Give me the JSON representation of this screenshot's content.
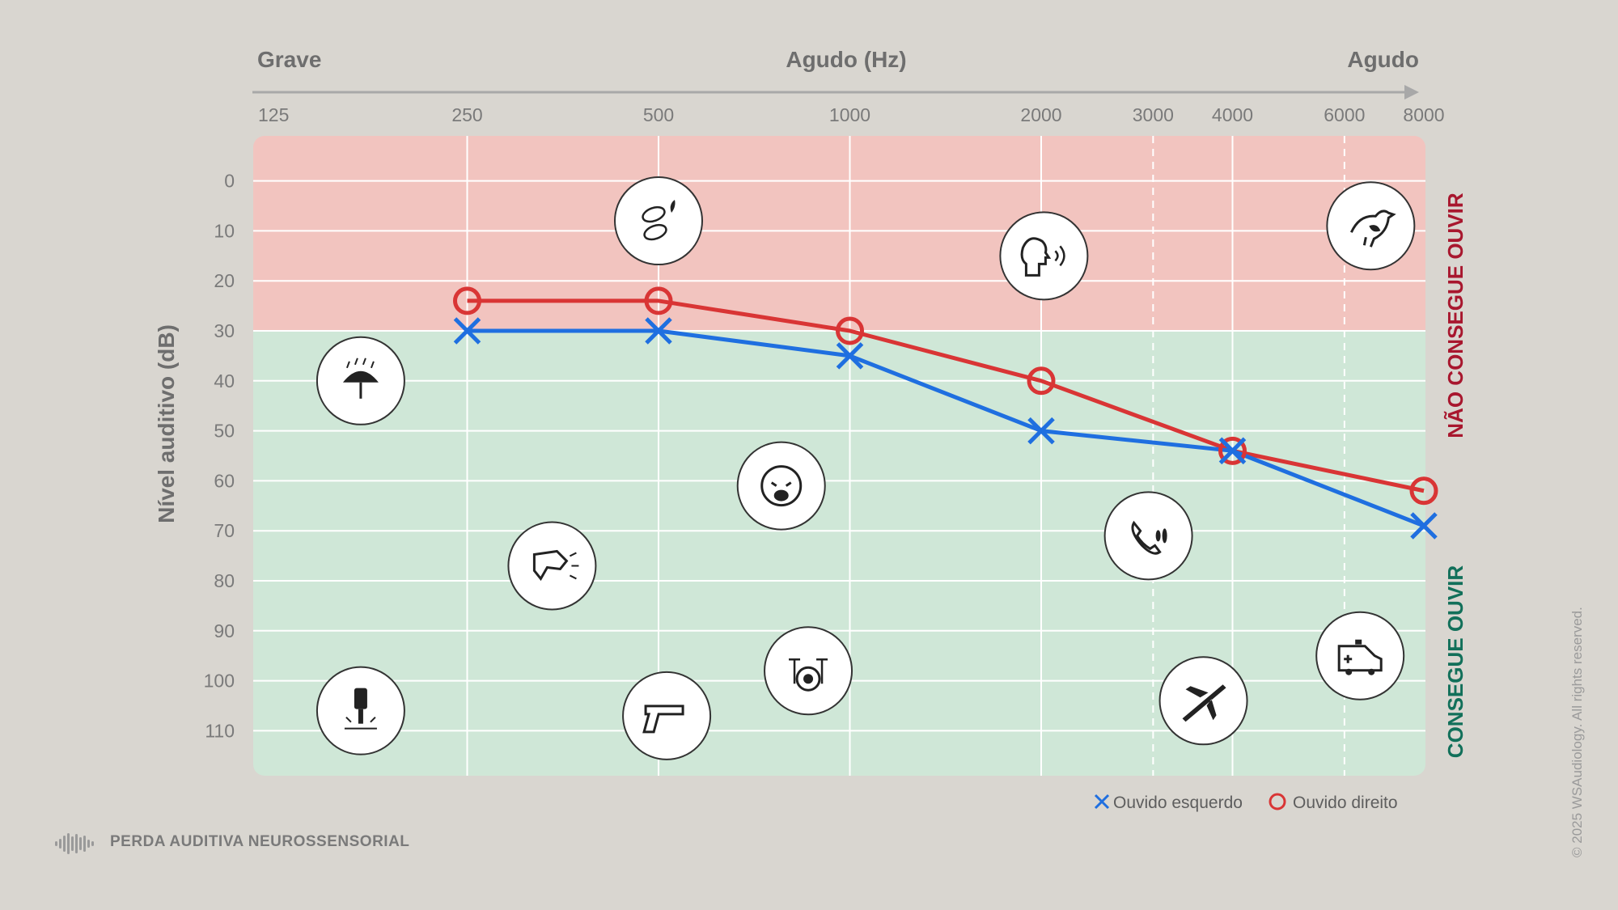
{
  "chart_data": {
    "type": "line",
    "x_axis_labels": {
      "left": "Grave",
      "center": "Agudo (Hz)",
      "right": "Agudo"
    },
    "x_ticks": [
      "125",
      "250",
      "500",
      "1000",
      "2000",
      "3000",
      "4000",
      "6000",
      "8000"
    ],
    "x_values": [
      125,
      250,
      500,
      1000,
      2000,
      3000,
      4000,
      6000,
      8000
    ],
    "ylabel": "Nível auditivo (dB)",
    "y_ticks": [
      0,
      10,
      20,
      30,
      40,
      50,
      60,
      70,
      80,
      90,
      100,
      110
    ],
    "ylim": [
      -9,
      119
    ],
    "y_inverted": true,
    "x_scale": "log",
    "regions": [
      {
        "label": "NÃO CONSEGUE OUVIR",
        "from": -9,
        "to": 30,
        "color": "#f2c4bf",
        "label_color": "#a8172e"
      },
      {
        "label": "CONSEGUE OUVIR",
        "from": 30,
        "to": 119,
        "color": "#cfe7d7",
        "label_color": "#12705a"
      }
    ],
    "series": [
      {
        "name": "Ouvido esquerdo",
        "marker": "x",
        "color": "#1f6fe0",
        "x": [
          250,
          500,
          1000,
          2000,
          4000,
          8000
        ],
        "y": [
          30,
          30,
          35,
          50,
          54,
          69
        ]
      },
      {
        "name": "Ouvido direito",
        "marker": "o",
        "color": "#d93535",
        "x": [
          250,
          500,
          1000,
          2000,
          4000,
          8000
        ],
        "y": [
          24,
          24,
          30,
          40,
          54,
          62
        ]
      }
    ],
    "sound_icons": [
      {
        "name": "rain-umbrella-icon",
        "freq": 170,
        "db": 40
      },
      {
        "name": "jackhammer-icon",
        "freq": 170,
        "db": 106
      },
      {
        "name": "barking-dog-icon",
        "freq": 340,
        "db": 77
      },
      {
        "name": "leaves-rustle-icon",
        "freq": 500,
        "db": 8
      },
      {
        "name": "handgun-icon",
        "freq": 515,
        "db": 107
      },
      {
        "name": "crying-baby-icon",
        "freq": 780,
        "db": 61
      },
      {
        "name": "drum-kit-icon",
        "freq": 860,
        "db": 98
      },
      {
        "name": "whisper-speech-icon",
        "freq": 2020,
        "db": 15
      },
      {
        "name": "phone-ring-icon",
        "freq": 2950,
        "db": 71
      },
      {
        "name": "airplane-icon",
        "freq": 3600,
        "db": 104
      },
      {
        "name": "bird-icon",
        "freq": 6600,
        "db": 9
      },
      {
        "name": "ambulance-icon",
        "freq": 6350,
        "db": 95
      }
    ],
    "grid": true,
    "legend": "bottom-right"
  },
  "footer": {
    "title": "PERDA AUDITIVA NEUROSSENSORIAL"
  },
  "copyright": "© 2025 WSAudiology. All rights reserved."
}
